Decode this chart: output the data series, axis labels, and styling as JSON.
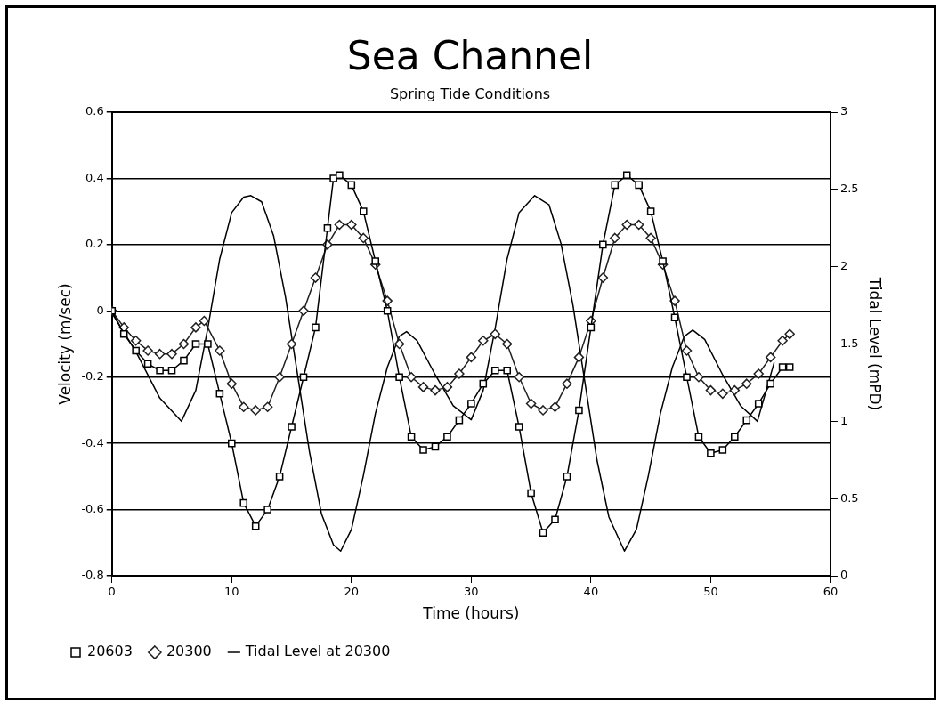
{
  "chart_data": {
    "type": "line",
    "title": "Sea Channel",
    "subtitle": "Spring Tide Conditions",
    "xlabel": "Time (hours)",
    "ylabel": "Velocity (m/sec)",
    "y2label": "Tidal Level (mPD)",
    "xlim": [
      0,
      60
    ],
    "xticks": [
      0,
      10,
      20,
      30,
      40,
      50,
      60
    ],
    "ylim": [
      -0.8,
      0.6
    ],
    "yticks": [
      -0.8,
      -0.6,
      -0.4,
      -0.2,
      0,
      0.2,
      0.4,
      0.6
    ],
    "y2lim": [
      0,
      3
    ],
    "y2ticks": [
      0,
      0.5,
      1,
      1.5,
      2,
      2.5,
      3
    ],
    "grid": "y",
    "legend": "bottom",
    "line_style": "solid",
    "series": [
      {
        "name": "20603",
        "color": "#000000",
        "marker": "square",
        "x": [
          0,
          1,
          2,
          3,
          4,
          5,
          6,
          7,
          8,
          9,
          10,
          11,
          12,
          13,
          14,
          15,
          16,
          17,
          18,
          18.5,
          19,
          20,
          21,
          22,
          23,
          24,
          25,
          26,
          27,
          28,
          29,
          30,
          31,
          32,
          33,
          34,
          35,
          36,
          37,
          38,
          39,
          40,
          41,
          42,
          43,
          44,
          45,
          46,
          47,
          48,
          49,
          50,
          51,
          52,
          53,
          54,
          55,
          56,
          56.6
        ],
        "values": [
          0,
          -0.07,
          -0.12,
          -0.16,
          -0.18,
          -0.18,
          -0.15,
          -0.1,
          -0.1,
          -0.25,
          -0.4,
          -0.58,
          -0.65,
          -0.6,
          -0.5,
          -0.35,
          -0.2,
          -0.05,
          0.25,
          0.4,
          0.41,
          0.38,
          0.3,
          0.15,
          0,
          -0.2,
          -0.38,
          -0.42,
          -0.41,
          -0.38,
          -0.33,
          -0.28,
          -0.22,
          -0.18,
          -0.18,
          -0.35,
          -0.55,
          -0.67,
          -0.63,
          -0.5,
          -0.3,
          -0.05,
          0.2,
          0.38,
          0.41,
          0.38,
          0.3,
          0.15,
          -0.02,
          -0.2,
          -0.38,
          -0.43,
          -0.42,
          -0.38,
          -0.33,
          -0.28,
          -0.22,
          -0.17,
          -0.17
        ]
      },
      {
        "name": "20300",
        "color": "#202020",
        "marker": "diamond",
        "x": [
          0,
          1,
          2,
          3,
          4,
          5,
          6,
          7,
          7.7,
          9,
          10,
          11,
          12,
          13,
          14,
          15,
          16,
          17,
          18,
          19,
          20,
          21,
          22,
          23,
          24,
          25,
          26,
          27,
          28,
          29,
          30,
          31,
          32,
          33,
          34,
          35,
          36,
          37,
          38,
          39,
          40,
          41,
          42,
          43,
          44,
          45,
          46,
          47,
          48,
          49,
          50,
          51,
          52,
          53,
          54,
          55,
          56,
          56.6
        ],
        "values": [
          0,
          -0.05,
          -0.09,
          -0.12,
          -0.13,
          -0.13,
          -0.1,
          -0.05,
          -0.03,
          -0.12,
          -0.22,
          -0.29,
          -0.3,
          -0.29,
          -0.2,
          -0.1,
          0,
          0.1,
          0.2,
          0.26,
          0.26,
          0.22,
          0.14,
          0.03,
          -0.1,
          -0.2,
          -0.23,
          -0.24,
          -0.23,
          -0.19,
          -0.14,
          -0.09,
          -0.07,
          -0.1,
          -0.2,
          -0.28,
          -0.3,
          -0.29,
          -0.22,
          -0.14,
          -0.03,
          0.1,
          0.22,
          0.26,
          0.26,
          0.22,
          0.14,
          0.03,
          -0.12,
          -0.2,
          -0.24,
          -0.25,
          -0.24,
          -0.22,
          -0.19,
          -0.14,
          -0.09,
          -0.07
        ]
      },
      {
        "name": "Tidal Level at 20300",
        "color": "#000000",
        "marker": "none",
        "axis": "y2",
        "x": [
          0,
          2,
          4,
          5.8,
          7,
          8,
          9,
          10,
          11,
          11.6,
          12.5,
          13.5,
          14.5,
          15.5,
          16.5,
          17.5,
          18.5,
          19.1,
          20,
          21,
          22,
          23,
          24,
          24.6,
          25.5,
          27,
          28.5,
          30,
          31,
          32,
          33,
          34,
          35.3,
          36.5,
          37.5,
          38.5,
          39.5,
          40.5,
          41.5,
          42.8,
          43.8,
          44.8,
          45.8,
          46.8,
          47.8,
          48.5,
          49.5,
          51,
          52.5,
          53.9,
          55.3
        ],
        "values": [
          1.7,
          1.45,
          1.15,
          1,
          1.2,
          1.6,
          2.05,
          2.35,
          2.45,
          2.46,
          2.42,
          2.2,
          1.8,
          1.3,
          0.8,
          0.4,
          0.2,
          0.16,
          0.3,
          0.65,
          1.05,
          1.35,
          1.55,
          1.58,
          1.52,
          1.3,
          1.1,
          1.01,
          1.2,
          1.6,
          2.05,
          2.35,
          2.46,
          2.4,
          2.15,
          1.75,
          1.25,
          0.75,
          0.38,
          0.16,
          0.3,
          0.65,
          1.05,
          1.35,
          1.55,
          1.59,
          1.53,
          1.3,
          1.1,
          1,
          1.38
        ]
      }
    ]
  }
}
